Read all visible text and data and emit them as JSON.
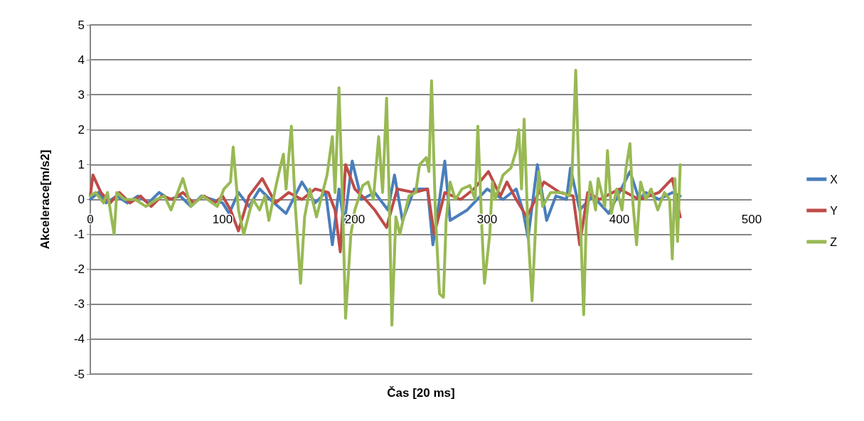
{
  "chart_data": {
    "type": "line",
    "xlabel": "Čas [20 ms]",
    "ylabel": "Akcelerace[m/s2]",
    "xlim": [
      0,
      500
    ],
    "xticks": [
      0,
      100,
      200,
      300,
      400,
      500
    ],
    "ylim": [
      -5,
      5
    ],
    "yticks": [
      -5,
      -4,
      -3,
      -2,
      -1,
      0,
      1,
      2,
      3,
      4,
      5
    ],
    "grid": "y",
    "legend": "right",
    "marker": "none",
    "line_style": "solid",
    "series": [
      {
        "name": "X",
        "color": "#4a7ebb",
        "x": [
          0,
          6,
          12,
          20,
          28,
          36,
          44,
          52,
          60,
          68,
          76,
          84,
          92,
          100,
          105,
          112,
          120,
          128,
          136,
          148,
          160,
          170,
          178,
          183,
          188,
          192,
          198,
          205,
          215,
          225,
          230,
          236,
          245,
          255,
          259,
          264,
          268,
          272,
          285,
          300,
          312,
          322,
          327,
          331,
          338,
          345,
          352,
          360,
          363,
          370,
          380,
          392,
          400,
          408,
          415,
          420,
          430,
          440,
          446
        ],
        "values": [
          0,
          0.2,
          -0.1,
          0.1,
          -0.1,
          0.1,
          -0.1,
          0.2,
          0,
          0.1,
          -0.2,
          0.1,
          0,
          -0.1,
          -0.4,
          0.2,
          -0.2,
          0.3,
          0,
          -0.4,
          0.5,
          -0.1,
          0.2,
          -1.3,
          0.3,
          -0.7,
          1.1,
          0,
          0.2,
          -0.3,
          0.7,
          -0.6,
          0.3,
          0.3,
          -1.3,
          0,
          1.1,
          -0.6,
          -0.3,
          0.3,
          0,
          0.3,
          -0.3,
          -1.1,
          1,
          -0.6,
          0.1,
          0,
          0.9,
          -0.3,
          0.1,
          -0.4,
          0.2,
          0.8,
          0,
          0.2,
          0,
          0.2,
          0.1
        ]
      },
      {
        "name": "Y",
        "color": "#be4b48",
        "x": [
          0,
          2,
          8,
          15,
          22,
          30,
          38,
          46,
          54,
          62,
          70,
          78,
          86,
          94,
          100,
          106,
          112,
          120,
          130,
          140,
          150,
          160,
          170,
          180,
          185,
          189,
          193,
          200,
          208,
          215,
          224,
          232,
          245,
          255,
          260,
          268,
          280,
          290,
          301,
          310,
          315,
          322,
          330,
          343,
          355,
          365,
          370,
          376,
          385,
          400,
          415,
          430,
          440,
          446
        ],
        "values": [
          0.1,
          0.7,
          0.2,
          -0.1,
          0.2,
          -0.1,
          0.1,
          -0.2,
          0.1,
          0,
          0.2,
          -0.1,
          0.1,
          -0.1,
          0.1,
          -0.3,
          -0.9,
          0.1,
          0.6,
          -0.1,
          0.2,
          0,
          0.3,
          0.2,
          -0.3,
          -1.5,
          1,
          0.3,
          0,
          -0.3,
          -0.8,
          0.3,
          0.2,
          0.3,
          -1,
          0.2,
          0,
          0.3,
          0.8,
          0.1,
          0.5,
          0,
          -0.5,
          0.5,
          0.2,
          0.1,
          -1.3,
          0.2,
          0,
          0.3,
          0,
          0.2,
          0.6,
          -0.5
        ]
      },
      {
        "name": "Z",
        "color": "#98b954",
        "x": [
          0,
          4,
          10,
          13,
          18,
          20,
          26,
          34,
          42,
          50,
          56,
          61,
          70,
          76,
          85,
          96,
          101,
          106,
          108,
          112,
          116,
          120,
          123,
          128,
          132,
          135,
          141,
          146,
          148,
          152,
          155,
          159,
          162,
          166,
          171,
          179,
          183,
          185,
          188,
          191,
          193,
          197,
          200,
          206,
          210,
          214,
          218,
          221,
          224,
          226,
          228,
          231,
          234,
          237,
          241,
          246,
          249,
          254,
          256,
          258,
          261,
          264,
          267,
          269,
          272,
          276,
          281,
          287,
          291,
          293,
          296,
          298,
          302,
          304,
          306,
          312,
          318,
          322,
          324,
          326,
          328,
          331,
          334,
          337,
          339,
          342,
          348,
          357,
          362,
          364,
          367,
          370,
          373,
          375,
          378,
          382,
          384,
          389,
          391,
          394,
          398,
          402,
          405,
          408,
          410,
          413,
          416,
          420,
          424,
          429,
          434,
          438,
          440,
          442,
          444,
          446
        ],
        "values": [
          0.1,
          0.2,
          -0.1,
          0.2,
          -1,
          0.2,
          0,
          0,
          -0.2,
          0,
          0.1,
          -0.3,
          0.6,
          -0.2,
          0.1,
          -0.2,
          0.3,
          0.5,
          1.5,
          -0.3,
          -1,
          -0.4,
          0,
          -0.3,
          0.1,
          -0.6,
          0.5,
          1.3,
          0.3,
          2.1,
          -0.2,
          -2.4,
          -0.5,
          0.3,
          -0.5,
          0.7,
          1.8,
          0.2,
          3.2,
          -0.5,
          -3.4,
          -1,
          -0.3,
          0.4,
          0.5,
          0,
          1.8,
          0.2,
          2.9,
          0,
          -3.6,
          -0.5,
          -1,
          -0.5,
          0.1,
          0.2,
          1,
          1.2,
          0.8,
          3.4,
          -0.5,
          -2.7,
          -2.8,
          -0.6,
          0.5,
          0,
          0.3,
          0.4,
          0,
          2.1,
          -0.8,
          -2.4,
          -1,
          0.5,
          0,
          0.7,
          0.9,
          1.4,
          2,
          0.3,
          2.3,
          -1,
          -2.9,
          -0.5,
          0.8,
          -0.2,
          0.2,
          0.2,
          0.1,
          0.5,
          3.7,
          0,
          -3.3,
          -0.6,
          0.5,
          -0.3,
          0.6,
          -0.2,
          1.4,
          -0.4,
          0.3,
          -0.3,
          0.9,
          1.6,
          0,
          -1.3,
          0.5,
          0,
          0.3,
          -0.3,
          0.2,
          0,
          -1.7,
          0.6,
          -1.2,
          1
        ]
      }
    ]
  }
}
